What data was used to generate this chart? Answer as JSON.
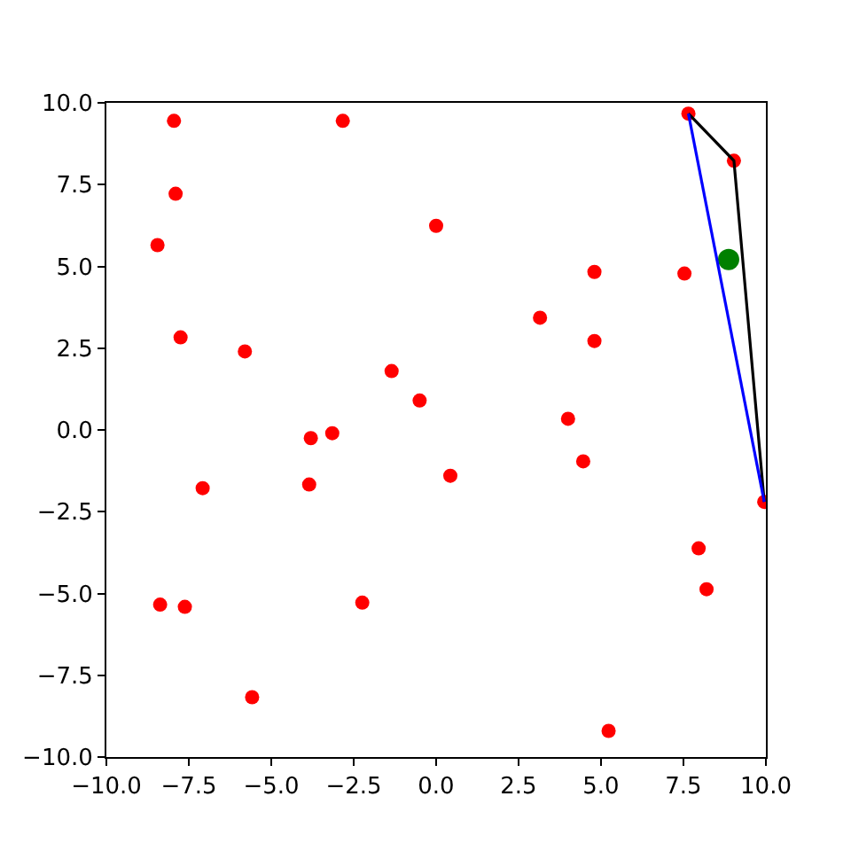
{
  "chart_data": {
    "type": "scatter",
    "xlim": [
      -10,
      10
    ],
    "ylim": [
      -10,
      10
    ],
    "xticks": [
      {
        "value": -10,
        "label": "−10.0"
      },
      {
        "value": -7.5,
        "label": "−7.5"
      },
      {
        "value": -5,
        "label": "−5.0"
      },
      {
        "value": -2.5,
        "label": "−2.5"
      },
      {
        "value": 0,
        "label": "0.0"
      },
      {
        "value": 2.5,
        "label": "2.5"
      },
      {
        "value": 5,
        "label": "5.0"
      },
      {
        "value": 7.5,
        "label": "7.5"
      },
      {
        "value": 10,
        "label": "10.0"
      }
    ],
    "yticks": [
      {
        "value": -10,
        "label": "−10.0"
      },
      {
        "value": -7.5,
        "label": "−7.5"
      },
      {
        "value": -5,
        "label": "−5.0"
      },
      {
        "value": -2.5,
        "label": "−2.5"
      },
      {
        "value": 0,
        "label": "0.0"
      },
      {
        "value": 2.5,
        "label": "2.5"
      },
      {
        "value": 5,
        "label": "5.0"
      },
      {
        "value": 7.5,
        "label": "7.5"
      },
      {
        "value": 10,
        "label": "10.0"
      }
    ],
    "grid": false,
    "marker": "circle",
    "line_style": "solid",
    "series": [
      {
        "color": "#ff0000",
        "x": [
          -7.95,
          -2.83,
          -7.9,
          -8.45,
          0.0,
          -7.75,
          -5.8,
          -1.35,
          -0.5,
          -3.8,
          -3.15,
          7.65,
          9.03,
          4.8,
          7.53,
          3.15,
          4.8,
          4.0,
          0.43,
          4.46,
          9.95,
          7.96,
          8.2,
          5.23,
          -7.08,
          -3.85,
          -8.37,
          -7.62,
          -2.24,
          -5.58
        ],
        "values": [
          9.45,
          9.45,
          7.22,
          5.65,
          6.24,
          2.83,
          2.4,
          1.8,
          0.9,
          -0.25,
          -0.1,
          9.67,
          8.23,
          4.83,
          4.78,
          3.43,
          2.72,
          0.34,
          -1.4,
          -0.96,
          -2.2,
          -3.62,
          -4.87,
          -9.2,
          -1.78,
          -1.67,
          -5.34,
          -5.41,
          -5.28,
          -8.17
        ]
      },
      {
        "color": "#008000",
        "x": [
          8.87
        ],
        "values": [
          5.21
        ]
      },
      {
        "type": "line",
        "marker": "none",
        "color": "#000000",
        "x": [
          7.65,
          9.03,
          9.95
        ],
        "values": [
          9.67,
          8.23,
          -2.2
        ]
      },
      {
        "type": "line",
        "marker": "none",
        "color": "#0000ff",
        "x": [
          7.65,
          9.95
        ],
        "values": [
          9.67,
          -2.2
        ]
      }
    ]
  }
}
